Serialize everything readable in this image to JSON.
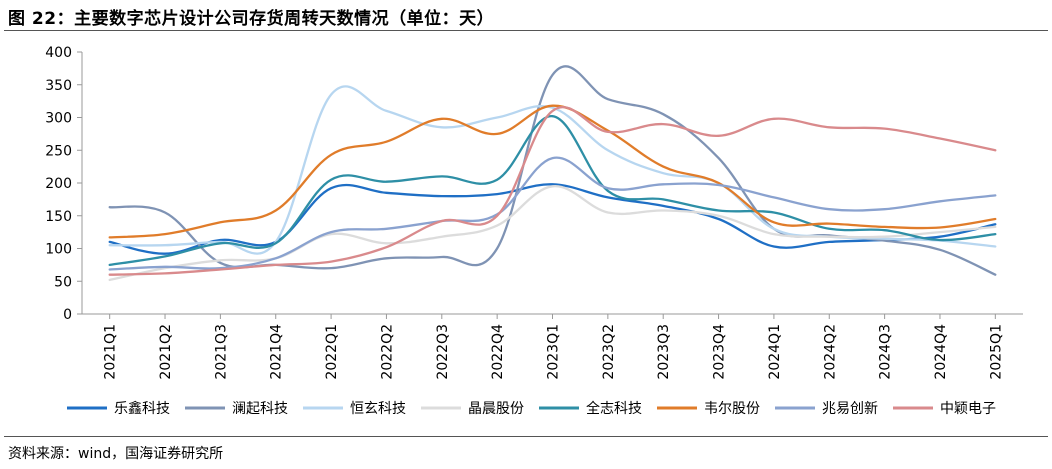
{
  "title": "图 22：主要数字芯片设计公司存货周转天数情况（单位：天）",
  "source": "资料来源：wind，国海证券研究所",
  "chart_data": {
    "type": "line",
    "x": [
      "2021Q1",
      "2021Q2",
      "2021Q3",
      "2021Q4",
      "2022Q1",
      "2022Q2",
      "2022Q3",
      "2022Q4",
      "2023Q1",
      "2023Q2",
      "2023Q3",
      "2023Q4",
      "2024Q1",
      "2024Q2",
      "2024Q3",
      "2024Q4",
      "2025Q1"
    ],
    "y_ticks": [
      0,
      50,
      100,
      150,
      200,
      250,
      300,
      350,
      400
    ],
    "ylim": [
      0,
      400
    ],
    "grid": false,
    "legend_position": "bottom",
    "series": [
      {
        "name": "乐鑫科技",
        "color": "#1f6fc5",
        "values": [
          110,
          92,
          113,
          110,
          192,
          185,
          180,
          183,
          198,
          178,
          165,
          145,
          103,
          110,
          113,
          118,
          137
        ]
      },
      {
        "name": "澜起科技",
        "color": "#7f93b4",
        "values": [
          163,
          155,
          78,
          75,
          70,
          85,
          87,
          100,
          365,
          328,
          305,
          238,
          130,
          120,
          112,
          98,
          60
        ]
      },
      {
        "name": "恒玄科技",
        "color": "#b7d6f0",
        "values": [
          105,
          105,
          110,
          110,
          335,
          310,
          285,
          300,
          315,
          250,
          215,
          200,
          130,
          118,
          115,
          112,
          103
        ]
      },
      {
        "name": "晶晨股份",
        "color": "#dcdcdc",
        "values": [
          52,
          70,
          82,
          85,
          122,
          108,
          118,
          135,
          195,
          155,
          158,
          150,
          122,
          118,
          118,
          125,
          133
        ]
      },
      {
        "name": "全志科技",
        "color": "#2e8fa6",
        "values": [
          75,
          88,
          108,
          108,
          205,
          202,
          210,
          205,
          302,
          188,
          175,
          158,
          155,
          130,
          128,
          113,
          122
        ]
      },
      {
        "name": "韦尔股份",
        "color": "#e07c2a",
        "values": [
          117,
          122,
          140,
          158,
          243,
          263,
          298,
          275,
          318,
          280,
          225,
          200,
          140,
          138,
          133,
          132,
          145
        ]
      },
      {
        "name": "兆易创新",
        "color": "#8aa2cf",
        "values": [
          68,
          72,
          70,
          85,
          125,
          130,
          142,
          152,
          238,
          192,
          198,
          197,
          178,
          160,
          160,
          172,
          181
        ]
      },
      {
        "name": "中颖电子",
        "color": "#d98a8c",
        "values": [
          60,
          62,
          68,
          75,
          80,
          102,
          142,
          150,
          310,
          278,
          290,
          272,
          298,
          285,
          283,
          268,
          250
        ]
      }
    ]
  }
}
